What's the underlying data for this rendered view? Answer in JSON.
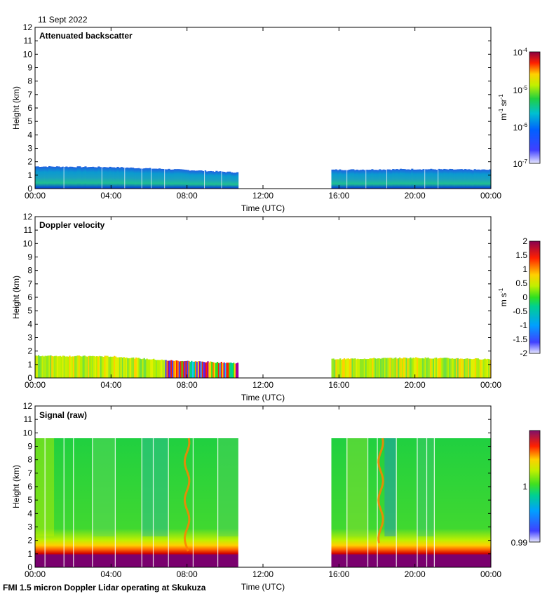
{
  "date_label": "11 Sept 2022",
  "footer": "FMI 1.5 micron Doppler Lidar operating at Skukuza",
  "chart_data": [
    {
      "type": "heatmap",
      "title": "Attenuated backscatter",
      "xlabel": "Time (UTC)",
      "ylabel": "Height (km)",
      "x_ticks": [
        "00:00",
        "04:00",
        "08:00",
        "12:00",
        "16:00",
        "20:00",
        "00:00"
      ],
      "y_ticks": [
        "0",
        "1",
        "2",
        "3",
        "4",
        "5",
        "6",
        "7",
        "8",
        "9",
        "10",
        "11",
        "12"
      ],
      "xlim_hours": [
        0,
        24
      ],
      "ylim_km": [
        0,
        12
      ],
      "data_gap_hours": [
        10.7,
        15.6
      ],
      "layer_top_km": [
        {
          "t": 0.0,
          "h": 1.65
        },
        {
          "t": 4.0,
          "h": 1.6
        },
        {
          "t": 7.0,
          "h": 1.45
        },
        {
          "t": 10.7,
          "h": 1.2
        },
        {
          "t": 15.6,
          "h": 1.4
        },
        {
          "t": 20.0,
          "h": 1.45
        },
        {
          "t": 24.0,
          "h": 1.4
        }
      ],
      "colorbar": {
        "units_prefix": "m",
        "units_exp1": "-1",
        "units_mid": " sr",
        "units_exp2": "-1",
        "ticks": [
          {
            "base": "10",
            "exp": "-4"
          },
          {
            "base": "10",
            "exp": "-5"
          },
          {
            "base": "10",
            "exp": "-6"
          },
          {
            "base": "10",
            "exp": "-7"
          }
        ]
      }
    },
    {
      "type": "heatmap",
      "title": "Doppler velocity",
      "xlabel": "Time (UTC)",
      "ylabel": "Height (km)",
      "x_ticks": [
        "00:00",
        "04:00",
        "08:00",
        "12:00",
        "16:00",
        "20:00",
        "00:00"
      ],
      "y_ticks": [
        "0",
        "1",
        "2",
        "3",
        "4",
        "5",
        "6",
        "7",
        "8",
        "9",
        "10",
        "11",
        "12"
      ],
      "xlim_hours": [
        0,
        24
      ],
      "ylim_km": [
        0,
        12
      ],
      "data_gap_hours": [
        10.7,
        15.6
      ],
      "layer_top_km": [
        {
          "t": 0.0,
          "h": 1.65
        },
        {
          "t": 4.0,
          "h": 1.6
        },
        {
          "t": 7.0,
          "h": 1.3
        },
        {
          "t": 10.7,
          "h": 1.1
        },
        {
          "t": 15.6,
          "h": 1.4
        },
        {
          "t": 20.0,
          "h": 1.5
        },
        {
          "t": 24.0,
          "h": 1.4
        }
      ],
      "colorbar": {
        "units_prefix": "m s",
        "units_exp1": "-1",
        "ticks": [
          "2",
          "1.5",
          "1",
          "0.5",
          "0",
          "-0.5",
          "-1",
          "-1.5",
          "-2"
        ]
      }
    },
    {
      "type": "heatmap",
      "title": "Signal (raw)",
      "xlabel": "Time (UTC)",
      "ylabel": "Height (km)",
      "x_ticks": [
        "00:00",
        "04:00",
        "08:00",
        "12:00",
        "16:00",
        "20:00",
        "00:00"
      ],
      "y_ticks": [
        "0",
        "1",
        "2",
        "3",
        "4",
        "5",
        "6",
        "7",
        "8",
        "9",
        "10",
        "11",
        "12"
      ],
      "xlim_hours": [
        0,
        24
      ],
      "ylim_km": [
        0,
        12
      ],
      "data_gap_hours": [
        10.7,
        15.6
      ],
      "data_top_km": 9.6,
      "colorbar": {
        "ticks": [
          "1",
          "0.99"
        ]
      }
    }
  ]
}
